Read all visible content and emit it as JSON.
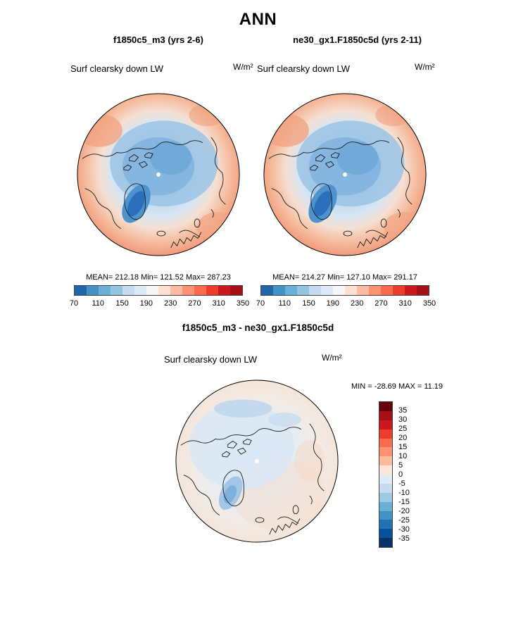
{
  "title": "ANN",
  "panels": {
    "left": {
      "subtitle": "f1850c5_m3 (yrs 2-6)",
      "variable": "Surf clearsky down LW",
      "units": "W/m²",
      "stats": "MEAN= 212.18 Min= 121.52 Max= 287.23"
    },
    "right": {
      "subtitle": "ne30_gx1.F1850c5d (yrs 2-11)",
      "variable": "Surf clearsky down LW",
      "units": "W/m²",
      "stats": "MEAN= 214.27 Min= 127.10 Max= 291.17"
    },
    "diff": {
      "title": "f1850c5_m3 - ne30_gx1.F1850c5d",
      "variable": "Surf clearsky down LW",
      "units": "W/m²",
      "minmax": "MIN = -28.69 MAX = 11.19"
    }
  },
  "colorbar_h": {
    "ticks": [
      "70",
      "110",
      "150",
      "190",
      "230",
      "270",
      "310",
      "350"
    ],
    "colors": [
      "#2166AC",
      "#4292C6",
      "#6BAED6",
      "#92C5DE",
      "#C6DBEF",
      "#DEEBF7",
      "#F7F7F7",
      "#FEE0D2",
      "#FCBBA1",
      "#FC9272",
      "#FB6A4A",
      "#EF3B2C",
      "#CB181D",
      "#A50F15"
    ]
  },
  "colorbar_v": {
    "ticks": [
      "35",
      "30",
      "25",
      "20",
      "15",
      "10",
      "5",
      "0",
      "-5",
      "-10",
      "-15",
      "-20",
      "-25",
      "-30",
      "-35"
    ],
    "colors": [
      "#67000D",
      "#A50F15",
      "#CB181D",
      "#EF3B2C",
      "#FB6A4A",
      "#FC9272",
      "#FCBBA1",
      "#FEE5D9",
      "#DEEBF7",
      "#C6DBEF",
      "#9ECAE1",
      "#6BAED6",
      "#4292C6",
      "#2171B5",
      "#08519C",
      "#08306B"
    ]
  },
  "chart_data": [
    {
      "type": "heatmap",
      "projection": "north-polar-stereographic",
      "title": "f1850c5_m3 (yrs 2-6)",
      "variable": "Surf clearsky down LW",
      "units": "W/m2",
      "season": "ANN",
      "stats": {
        "mean": 212.18,
        "min": 121.52,
        "max": 287.23
      },
      "colorbar_levels": [
        70,
        110,
        150,
        190,
        230,
        270,
        310,
        350
      ],
      "colorbar_style": "blue-to-red diverging, low values (blue) over central Arctic, high values (orange/red) toward map edge"
    },
    {
      "type": "heatmap",
      "projection": "north-polar-stereographic",
      "title": "ne30_gx1.F1850c5d (yrs 2-11)",
      "variable": "Surf clearsky down LW",
      "units": "W/m2",
      "season": "ANN",
      "stats": {
        "mean": 214.27,
        "min": 127.1,
        "max": 291.17
      },
      "colorbar_levels": [
        70,
        110,
        150,
        190,
        230,
        270,
        310,
        350
      ],
      "colorbar_style": "blue-to-red diverging, low values (blue) over central Arctic, high values (orange/red) toward map edge"
    },
    {
      "type": "heatmap",
      "projection": "north-polar-stereographic",
      "title": "f1850c5_m3 - ne30_gx1.F1850c5d",
      "variable": "Surf clearsky down LW",
      "units": "W/m2",
      "season": "ANN",
      "stats": {
        "min": -28.69,
        "max": 11.19
      },
      "colorbar_levels": [
        35,
        30,
        25,
        20,
        15,
        10,
        5,
        0,
        -5,
        -10,
        -15,
        -20,
        -25,
        -30,
        -35
      ],
      "colorbar_style": "red positive (top) to blue negative (bottom); difference field mostly pale blue with weak pale-orange patches, stronger negative blob near Greenland"
    }
  ]
}
